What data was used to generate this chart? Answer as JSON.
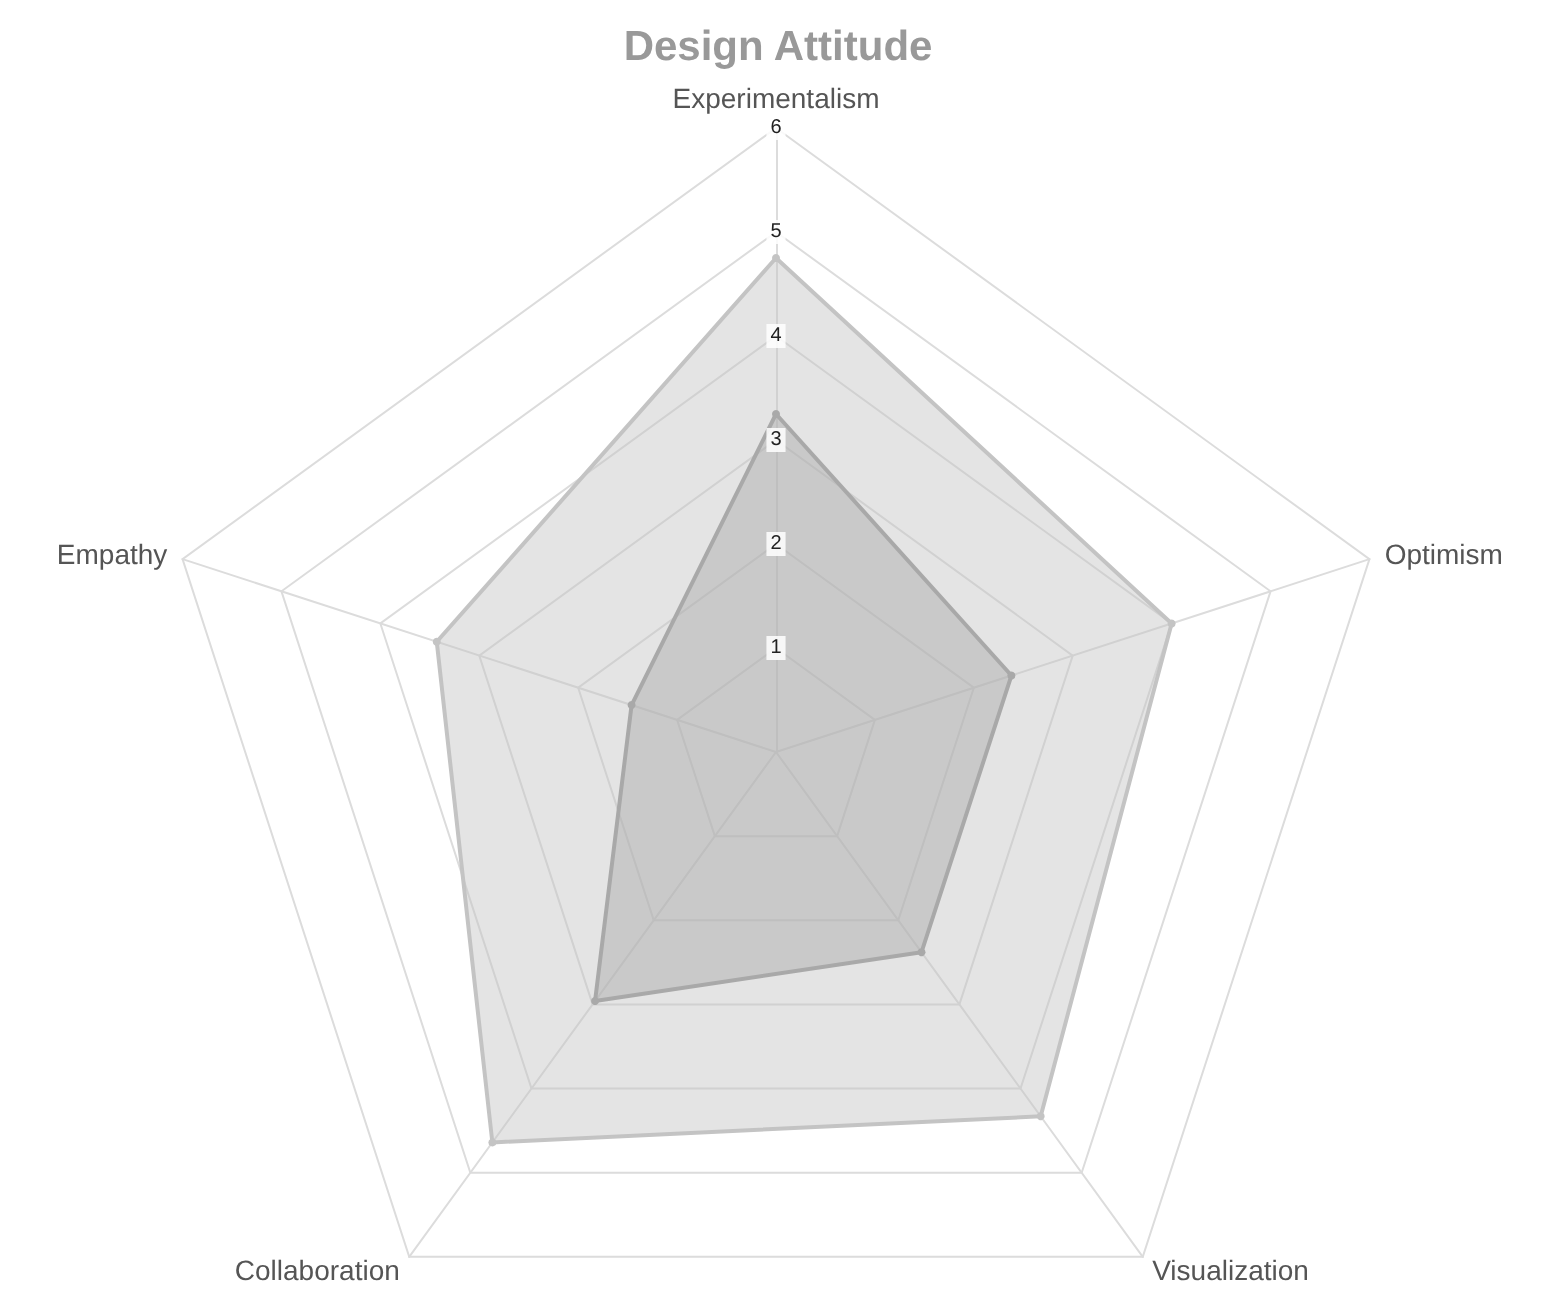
{
  "chart_data": {
    "type": "radar",
    "title": "Design Attitude",
    "categories": [
      "Experimentalism",
      "Optimism",
      "Visualization",
      "Collaboration",
      "Empathy"
    ],
    "series": [
      {
        "color": "#c4c4c4",
        "values": [
          4.75,
          4.0,
          4.33,
          4.64,
          3.43
        ]
      },
      {
        "color": "#a9a9a9",
        "values": [
          3.25,
          2.38,
          2.38,
          2.96,
          1.46
        ]
      }
    ],
    "ylim": [
      0,
      6
    ],
    "yticks": [
      1,
      2,
      3,
      4,
      5,
      6
    ],
    "grid": true,
    "marker": "circle"
  }
}
